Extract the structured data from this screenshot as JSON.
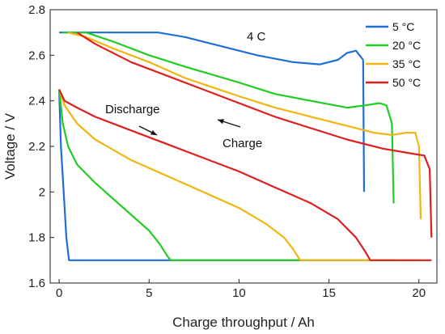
{
  "chart_data": {
    "type": "line",
    "title": "",
    "xlabel": "Charge throughput  /  Ah",
    "ylabel": "Voltage  /  V",
    "xlim": [
      -0.5,
      21
    ],
    "ylim": [
      1.6,
      2.8
    ],
    "xticks": [
      0,
      5,
      10,
      15,
      20
    ],
    "yticks": [
      1.6,
      1.8,
      2,
      2.2,
      2.4,
      2.6,
      2.8
    ],
    "annotations": {
      "rate": "4 C",
      "discharge": "Discharge",
      "charge": "Charge"
    },
    "legend": {
      "position": "top-right",
      "entries": [
        {
          "label": "5 °C",
          "color": "#1f6fd6"
        },
        {
          "label": "20 °C",
          "color": "#22cc22"
        },
        {
          "label": "35 °C",
          "color": "#f2b50f"
        },
        {
          "label": "50 °C",
          "color": "#dd1f1f"
        }
      ]
    },
    "series": [
      {
        "name": "5 °C",
        "color": "#1f6fd6",
        "charge": [
          [
            0,
            2.7
          ],
          [
            2,
            2.7
          ],
          [
            5.5,
            2.7
          ],
          [
            7,
            2.68
          ],
          [
            9,
            2.64
          ],
          [
            11,
            2.6
          ],
          [
            13,
            2.57
          ],
          [
            14.5,
            2.56
          ],
          [
            15.5,
            2.58
          ],
          [
            16,
            2.61
          ],
          [
            16.5,
            2.62
          ],
          [
            16.9,
            2.58
          ],
          [
            16.95,
            2.0
          ]
        ],
        "discharge": [
          [
            0,
            2.45
          ],
          [
            0.1,
            2.2
          ],
          [
            0.25,
            2.0
          ],
          [
            0.4,
            1.8
          ],
          [
            0.55,
            1.7
          ],
          [
            2,
            1.7
          ],
          [
            6,
            1.7
          ],
          [
            10,
            1.7
          ],
          [
            15,
            1.7
          ],
          [
            16.9,
            1.7
          ]
        ],
        "discharge_colored": true
      },
      {
        "name": "20 °C",
        "color": "#22cc22",
        "charge": [
          [
            0.2,
            2.7
          ],
          [
            1.5,
            2.7
          ],
          [
            3,
            2.66
          ],
          [
            5,
            2.6
          ],
          [
            7,
            2.55
          ],
          [
            10,
            2.48
          ],
          [
            12,
            2.43
          ],
          [
            14,
            2.4
          ],
          [
            16,
            2.37
          ],
          [
            17,
            2.38
          ],
          [
            17.8,
            2.39
          ],
          [
            18.2,
            2.38
          ],
          [
            18.5,
            2.3
          ],
          [
            18.6,
            1.95
          ]
        ],
        "discharge": [
          [
            0,
            2.45
          ],
          [
            0.2,
            2.3
          ],
          [
            0.5,
            2.2
          ],
          [
            1,
            2.12
          ],
          [
            2,
            2.04
          ],
          [
            3,
            1.97
          ],
          [
            4,
            1.9
          ],
          [
            5,
            1.83
          ],
          [
            5.6,
            1.77
          ],
          [
            6,
            1.72
          ],
          [
            6.2,
            1.7
          ],
          [
            8,
            1.7
          ],
          [
            12,
            1.7
          ],
          [
            16,
            1.7
          ],
          [
            18.6,
            1.7
          ]
        ],
        "discharge_colored": true
      },
      {
        "name": "35 °C",
        "color": "#f2b50f",
        "charge": [
          [
            0.5,
            2.7
          ],
          [
            1.5,
            2.68
          ],
          [
            3,
            2.63
          ],
          [
            5,
            2.57
          ],
          [
            7,
            2.5
          ],
          [
            10,
            2.42
          ],
          [
            12,
            2.37
          ],
          [
            14,
            2.33
          ],
          [
            16,
            2.29
          ],
          [
            17.5,
            2.26
          ],
          [
            18.5,
            2.25
          ],
          [
            19.3,
            2.26
          ],
          [
            19.8,
            2.26
          ],
          [
            20,
            2.2
          ],
          [
            20.1,
            1.88
          ]
        ],
        "discharge": [
          [
            0,
            2.45
          ],
          [
            0.3,
            2.38
          ],
          [
            1,
            2.3
          ],
          [
            2,
            2.23
          ],
          [
            4,
            2.14
          ],
          [
            6,
            2.07
          ],
          [
            8,
            2.0
          ],
          [
            10,
            1.93
          ],
          [
            11.5,
            1.86
          ],
          [
            12.5,
            1.8
          ],
          [
            13,
            1.75
          ],
          [
            13.4,
            1.7
          ],
          [
            15,
            1.7
          ],
          [
            18,
            1.7
          ],
          [
            20.1,
            1.7
          ]
        ],
        "discharge_colored": true
      },
      {
        "name": "50 °C",
        "color": "#dd1f1f",
        "charge": [
          [
            1,
            2.7
          ],
          [
            2,
            2.65
          ],
          [
            4,
            2.57
          ],
          [
            6,
            2.51
          ],
          [
            8,
            2.45
          ],
          [
            10,
            2.39
          ],
          [
            12,
            2.33
          ],
          [
            14,
            2.28
          ],
          [
            16,
            2.23
          ],
          [
            18,
            2.19
          ],
          [
            19.5,
            2.17
          ],
          [
            20.3,
            2.16
          ],
          [
            20.6,
            2.1
          ],
          [
            20.7,
            1.8
          ]
        ],
        "discharge": [
          [
            0,
            2.45
          ],
          [
            0.3,
            2.4
          ],
          [
            1,
            2.37
          ],
          [
            2,
            2.33
          ],
          [
            4,
            2.27
          ],
          [
            6,
            2.21
          ],
          [
            8,
            2.15
          ],
          [
            10,
            2.09
          ],
          [
            12,
            2.02
          ],
          [
            14,
            1.95
          ],
          [
            15.5,
            1.88
          ],
          [
            16.5,
            1.8
          ],
          [
            17,
            1.74
          ],
          [
            17.3,
            1.7
          ],
          [
            19,
            1.7
          ],
          [
            20.7,
            1.7
          ]
        ],
        "discharge_colored": true
      }
    ]
  }
}
